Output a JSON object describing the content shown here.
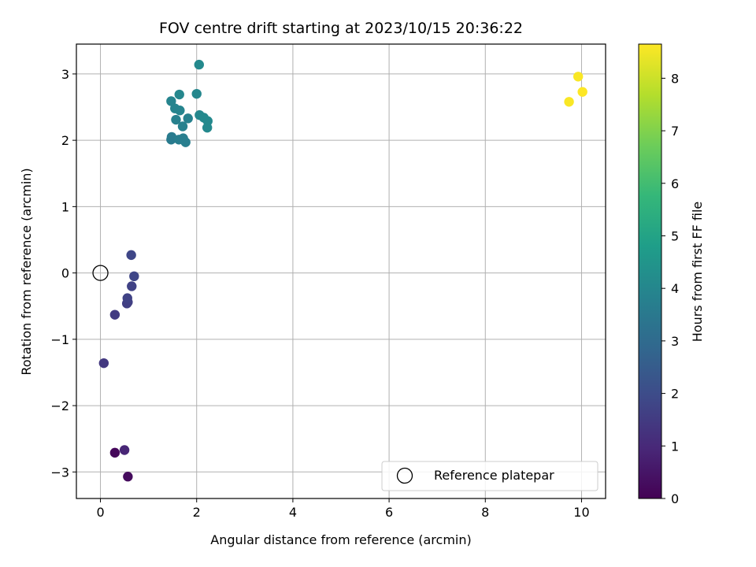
{
  "chart_data": {
    "type": "scatter",
    "title": "FOV centre drift starting at 2023/10/15 20:36:22",
    "xlabel": "Angular distance from reference (arcmin)",
    "ylabel": "Rotation from reference (arcmin)",
    "xlim": [
      -0.5,
      10.5
    ],
    "ylim": [
      -3.4,
      3.45
    ],
    "xticks": [
      0,
      2,
      4,
      6,
      8,
      10
    ],
    "xtick_labels": [
      "0",
      "2",
      "4",
      "6",
      "8",
      "10"
    ],
    "yticks": [
      -3,
      -2,
      -1,
      0,
      1,
      2,
      3
    ],
    "ytick_labels": [
      "−3",
      "−2",
      "−1",
      "0",
      "1",
      "2",
      "3"
    ],
    "grid": true,
    "legend_position": "lower-right",
    "colorbar": {
      "label": "Hours from first FF file",
      "range": [
        0,
        8.65
      ],
      "colormap": "viridis",
      "ticks": [
        0,
        1,
        2,
        3,
        4,
        5,
        6,
        7,
        8
      ],
      "tick_labels": [
        "0",
        "1",
        "2",
        "3",
        "4",
        "5",
        "6",
        "7",
        "8"
      ]
    },
    "series": [
      {
        "name": "Reference platepar",
        "marker": "hollow-circle",
        "color": "#000000",
        "points": [
          {
            "x": 0,
            "y": 0
          }
        ]
      },
      {
        "marker": "filled-circle",
        "colored_by": "hours",
        "points": [
          {
            "x": 0.3,
            "y": -2.71,
            "c": 0.15
          },
          {
            "x": 0.57,
            "y": -3.07,
            "c": 0.25
          },
          {
            "x": 0.5,
            "y": -2.67,
            "c": 0.9
          },
          {
            "x": 0.07,
            "y": -1.36,
            "c": 1.4
          },
          {
            "x": 0.3,
            "y": -0.63,
            "c": 1.5
          },
          {
            "x": 0.55,
            "y": -0.46,
            "c": 1.6
          },
          {
            "x": 0.57,
            "y": -0.44,
            "c": 1.6
          },
          {
            "x": 0.56,
            "y": -0.38,
            "c": 1.7
          },
          {
            "x": 0.65,
            "y": -0.2,
            "c": 1.7
          },
          {
            "x": 0.7,
            "y": -0.05,
            "c": 1.8
          },
          {
            "x": 0.64,
            "y": 0.27,
            "c": 1.8
          },
          {
            "x": 1.47,
            "y": 2.01,
            "c": 3.6
          },
          {
            "x": 1.48,
            "y": 2.05,
            "c": 3.6
          },
          {
            "x": 1.63,
            "y": 2.01,
            "c": 3.7
          },
          {
            "x": 1.72,
            "y": 2.03,
            "c": 3.7
          },
          {
            "x": 1.77,
            "y": 1.97,
            "c": 3.7
          },
          {
            "x": 1.71,
            "y": 2.21,
            "c": 3.8
          },
          {
            "x": 1.57,
            "y": 2.31,
            "c": 3.8
          },
          {
            "x": 1.82,
            "y": 2.33,
            "c": 3.8
          },
          {
            "x": 1.55,
            "y": 2.48,
            "c": 3.9
          },
          {
            "x": 1.65,
            "y": 2.45,
            "c": 3.9
          },
          {
            "x": 1.47,
            "y": 2.59,
            "c": 3.9
          },
          {
            "x": 1.64,
            "y": 2.69,
            "c": 4.0
          },
          {
            "x": 2.0,
            "y": 2.7,
            "c": 4.0
          },
          {
            "x": 2.06,
            "y": 2.38,
            "c": 4.0
          },
          {
            "x": 2.15,
            "y": 2.34,
            "c": 4.1
          },
          {
            "x": 2.23,
            "y": 2.29,
            "c": 4.1
          },
          {
            "x": 2.22,
            "y": 2.19,
            "c": 4.1
          },
          {
            "x": 2.05,
            "y": 3.14,
            "c": 4.1
          },
          {
            "x": 9.74,
            "y": 2.58,
            "c": 8.6
          },
          {
            "x": 9.93,
            "y": 2.96,
            "c": 8.6
          },
          {
            "x": 10.02,
            "y": 2.73,
            "c": 8.65
          }
        ]
      }
    ]
  }
}
